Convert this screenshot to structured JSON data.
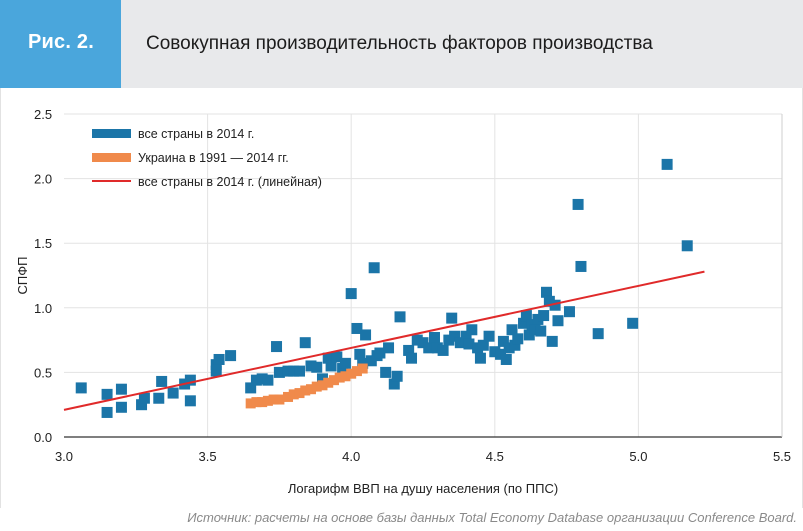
{
  "header": {
    "figure_label": "Рис. 2.",
    "title": "Совокупная производительность факторов производства"
  },
  "source": "Источник: расчеты на основе базы данных Total Economy Database организации Conference Board.",
  "colors": {
    "all_countries": "#1b75a8",
    "ukraine": "#f08a4b",
    "trend": "#e02a2a",
    "header_bg": "#e8e9eb",
    "tab_bg": "#4aa6dc",
    "grid": "#e3e3e3"
  },
  "chart_data": {
    "type": "scatter",
    "xlabel": "Логарифм ВВП на душу населения (по ППС)",
    "ylabel": "СПФП",
    "xlim": [
      3.0,
      5.5
    ],
    "ylim": [
      0.0,
      2.5
    ],
    "xticks": [
      "3.0",
      "3.5",
      "4.0",
      "4.5",
      "5.0",
      "5.5"
    ],
    "yticks": [
      "0.0",
      "0.5",
      "1.0",
      "1.5",
      "2.0",
      "2.5"
    ],
    "grid": true,
    "legend_position": "top-left",
    "series": [
      {
        "name": "все страны в 2014 г.",
        "kind": "points",
        "points": [
          [
            3.06,
            0.38
          ],
          [
            3.15,
            0.33
          ],
          [
            3.15,
            0.19
          ],
          [
            3.2,
            0.37
          ],
          [
            3.2,
            0.23
          ],
          [
            3.27,
            0.25
          ],
          [
            3.28,
            0.3
          ],
          [
            3.33,
            0.3
          ],
          [
            3.34,
            0.43
          ],
          [
            3.38,
            0.34
          ],
          [
            3.42,
            0.41
          ],
          [
            3.44,
            0.28
          ],
          [
            3.44,
            0.44
          ],
          [
            3.53,
            0.51
          ],
          [
            3.53,
            0.56
          ],
          [
            3.54,
            0.6
          ],
          [
            3.58,
            0.63
          ],
          [
            3.65,
            0.38
          ],
          [
            3.67,
            0.44
          ],
          [
            3.69,
            0.45
          ],
          [
            3.71,
            0.44
          ],
          [
            3.74,
            0.7
          ],
          [
            3.75,
            0.5
          ],
          [
            3.78,
            0.51
          ],
          [
            3.8,
            0.51
          ],
          [
            3.82,
            0.51
          ],
          [
            3.84,
            0.73
          ],
          [
            3.86,
            0.55
          ],
          [
            3.88,
            0.54
          ],
          [
            3.9,
            0.45
          ],
          [
            3.92,
            0.61
          ],
          [
            3.93,
            0.55
          ],
          [
            3.95,
            0.62
          ],
          [
            3.97,
            0.53
          ],
          [
            3.98,
            0.57
          ],
          [
            4.0,
            1.11
          ],
          [
            4.02,
            0.84
          ],
          [
            4.03,
            0.64
          ],
          [
            4.04,
            0.57
          ],
          [
            4.05,
            0.79
          ],
          [
            4.07,
            0.59
          ],
          [
            4.08,
            1.31
          ],
          [
            4.09,
            0.63
          ],
          [
            4.1,
            0.65
          ],
          [
            4.12,
            0.5
          ],
          [
            4.13,
            0.69
          ],
          [
            4.15,
            0.41
          ],
          [
            4.16,
            0.47
          ],
          [
            4.17,
            0.93
          ],
          [
            4.2,
            0.67
          ],
          [
            4.21,
            0.61
          ],
          [
            4.23,
            0.75
          ],
          [
            4.25,
            0.73
          ],
          [
            4.27,
            0.69
          ],
          [
            4.29,
            0.77
          ],
          [
            4.3,
            0.69
          ],
          [
            4.32,
            0.67
          ],
          [
            4.34,
            0.75
          ],
          [
            4.35,
            0.92
          ],
          [
            4.36,
            0.78
          ],
          [
            4.38,
            0.73
          ],
          [
            4.4,
            0.78
          ],
          [
            4.41,
            0.72
          ],
          [
            4.42,
            0.83
          ],
          [
            4.44,
            0.69
          ],
          [
            4.45,
            0.61
          ],
          [
            4.46,
            0.71
          ],
          [
            4.48,
            0.78
          ],
          [
            4.5,
            0.66
          ],
          [
            4.52,
            0.64
          ],
          [
            4.53,
            0.74
          ],
          [
            4.54,
            0.6
          ],
          [
            4.55,
            0.69
          ],
          [
            4.56,
            0.83
          ],
          [
            4.57,
            0.71
          ],
          [
            4.58,
            0.76
          ],
          [
            4.6,
            0.88
          ],
          [
            4.61,
            0.94
          ],
          [
            4.62,
            0.79
          ],
          [
            4.63,
            0.87
          ],
          [
            4.64,
            0.83
          ],
          [
            4.65,
            0.91
          ],
          [
            4.66,
            0.82
          ],
          [
            4.67,
            0.94
          ],
          [
            4.68,
            1.12
          ],
          [
            4.69,
            1.05
          ],
          [
            4.7,
            0.74
          ],
          [
            4.71,
            1.02
          ],
          [
            4.72,
            0.9
          ],
          [
            4.76,
            0.97
          ],
          [
            4.79,
            1.8
          ],
          [
            4.8,
            1.32
          ],
          [
            4.86,
            0.8
          ],
          [
            4.98,
            0.88
          ],
          [
            5.1,
            2.11
          ],
          [
            5.17,
            1.48
          ]
        ]
      },
      {
        "name": "Украина в 1991 — 2014 гг.",
        "kind": "points",
        "points": [
          [
            3.65,
            0.26
          ],
          [
            3.67,
            0.27
          ],
          [
            3.69,
            0.27
          ],
          [
            3.71,
            0.28
          ],
          [
            3.73,
            0.29
          ],
          [
            3.75,
            0.29
          ],
          [
            3.78,
            0.31
          ],
          [
            3.8,
            0.33
          ],
          [
            3.82,
            0.34
          ],
          [
            3.84,
            0.36
          ],
          [
            3.86,
            0.37
          ],
          [
            3.88,
            0.39
          ],
          [
            3.9,
            0.4
          ],
          [
            3.92,
            0.42
          ],
          [
            3.94,
            0.44
          ],
          [
            3.96,
            0.46
          ],
          [
            3.98,
            0.47
          ],
          [
            4.0,
            0.49
          ],
          [
            4.02,
            0.51
          ],
          [
            4.04,
            0.53
          ]
        ]
      },
      {
        "name": "все страны в 2014 г. (линейная)",
        "kind": "line",
        "points": [
          [
            3.0,
            0.21
          ],
          [
            5.23,
            1.28
          ]
        ]
      }
    ]
  }
}
